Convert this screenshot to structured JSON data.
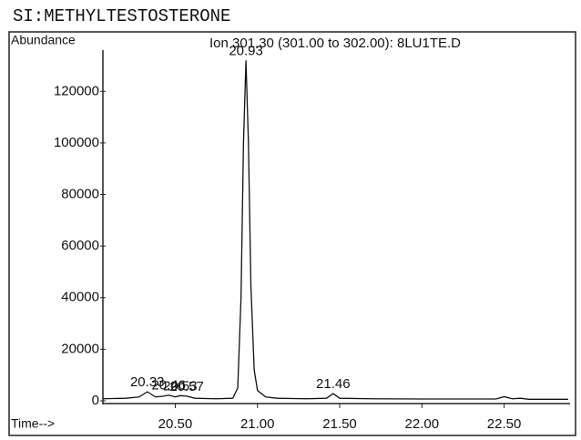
{
  "chart_data": {
    "type": "line",
    "title": "SI:METHYLTESTOSTERONE",
    "subtitle": "Ion 301.30 (301.00 to 302.00): 8LU1TE.D",
    "ylabel": "Abundance",
    "xlabel": "Time-->",
    "color": "#111111",
    "x": [
      20.06,
      20.2,
      20.28,
      20.33,
      20.38,
      20.43,
      20.46,
      20.5,
      20.53,
      20.57,
      20.62,
      20.75,
      20.85,
      20.88,
      20.9,
      20.915,
      20.93,
      20.945,
      20.96,
      20.98,
      21.0,
      21.05,
      21.12,
      21.3,
      21.42,
      21.46,
      21.5,
      21.7,
      22.0,
      22.45,
      22.5,
      22.55,
      22.6,
      22.65,
      22.89
    ],
    "values": [
      800,
      1000,
      1500,
      3500,
      1500,
      1800,
      2200,
      1500,
      2000,
      1800,
      1000,
      800,
      1000,
      5000,
      40000,
      100000,
      132000,
      100000,
      45000,
      12000,
      4000,
      1500,
      1000,
      800,
      1000,
      2800,
      1000,
      800,
      700,
      700,
      1600,
      800,
      1000,
      600,
      600
    ],
    "annotations": [
      {
        "label": "20.93",
        "x": 20.93
      },
      {
        "label": "20.33",
        "x": 20.33
      },
      {
        "label": "20.46",
        "x": 20.46
      },
      {
        "label": "20.53",
        "x": 20.53
      },
      {
        "label": "20.57",
        "x": 20.57
      },
      {
        "label": "21.46",
        "x": 21.46
      }
    ],
    "xlim": [
      20.06,
      22.89
    ],
    "ylim": [
      0,
      142000
    ],
    "xticks": [
      {
        "value": 20.5,
        "label": "20.50"
      },
      {
        "value": 21.0,
        "label": "21.00"
      },
      {
        "value": 21.5,
        "label": "21.50"
      },
      {
        "value": 22.0,
        "label": "22.00"
      },
      {
        "value": 22.5,
        "label": "22.50"
      }
    ],
    "yticks": [
      0,
      20000,
      40000,
      60000,
      80000,
      100000,
      120000
    ],
    "grid": false
  }
}
